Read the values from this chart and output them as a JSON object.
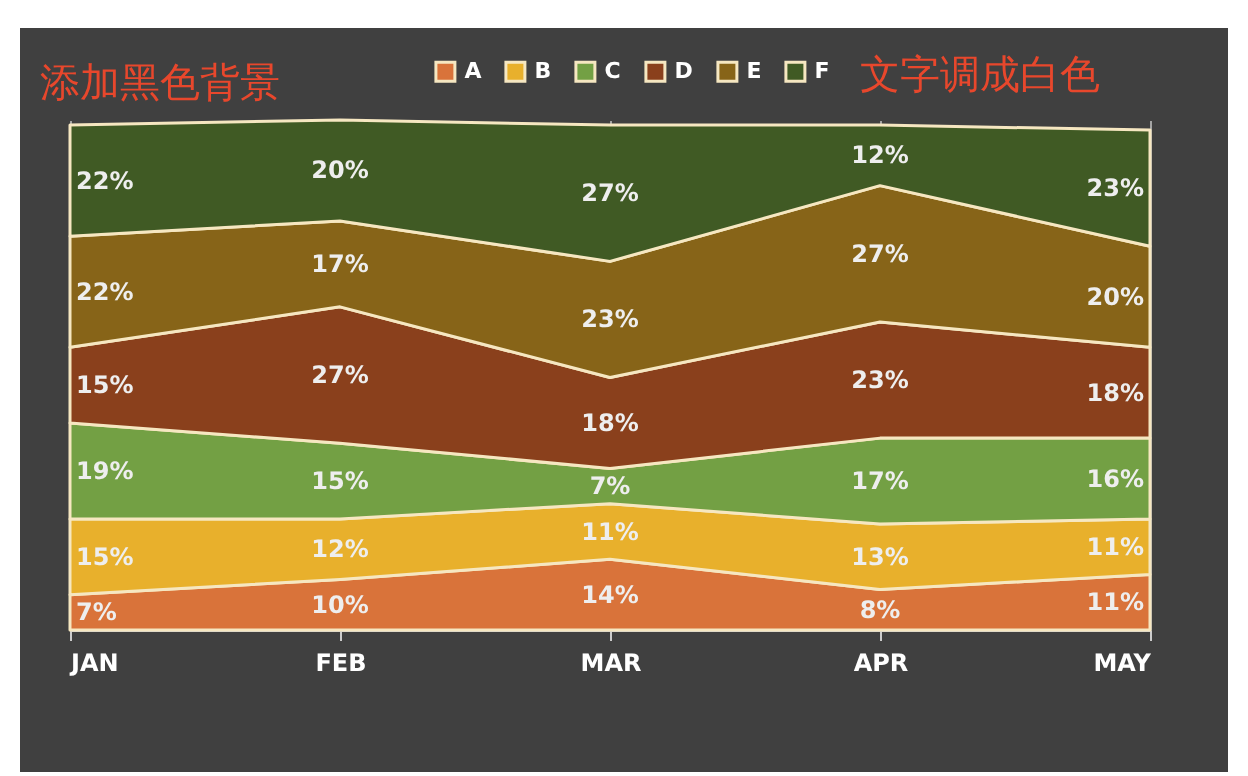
{
  "chart_data": {
    "type": "area",
    "stacked": true,
    "categories": [
      "JAN",
      "FEB",
      "MAR",
      "APR",
      "MAY"
    ],
    "annotations": [
      "添加黑色背景",
      "文字调成白色"
    ],
    "grid": "x",
    "legend": "top",
    "series": [
      {
        "name": "A",
        "color": "#d9733a",
        "values": [
          7,
          10,
          14,
          8,
          11
        ],
        "value_labels": [
          "7%",
          "10%",
          "14%",
          "8%",
          "11%"
        ]
      },
      {
        "name": "B",
        "color": "#e8b02c",
        "values": [
          15,
          12,
          11,
          13,
          11
        ],
        "value_labels": [
          "15%",
          "12%",
          "11%",
          "13%",
          "11%"
        ]
      },
      {
        "name": "C",
        "color": "#73a044",
        "values": [
          19,
          15,
          7,
          17,
          16
        ],
        "value_labels": [
          "19%",
          "15%",
          "7%",
          "17%",
          "16%"
        ]
      },
      {
        "name": "D",
        "color": "#8a401c",
        "values": [
          15,
          27,
          18,
          23,
          18
        ],
        "value_labels": [
          "15%",
          "27%",
          "18%",
          "23%",
          "18%"
        ]
      },
      {
        "name": "E",
        "color": "#876418",
        "values": [
          22,
          17,
          23,
          27,
          20
        ],
        "value_labels": [
          "22%",
          "17%",
          "23%",
          "27%",
          "20%"
        ]
      },
      {
        "name": "F",
        "color": "#405a24",
        "values": [
          22,
          20,
          27,
          12,
          23
        ],
        "value_labels": [
          "22%",
          "20%",
          "27%",
          "12%",
          "23%"
        ]
      }
    ]
  }
}
